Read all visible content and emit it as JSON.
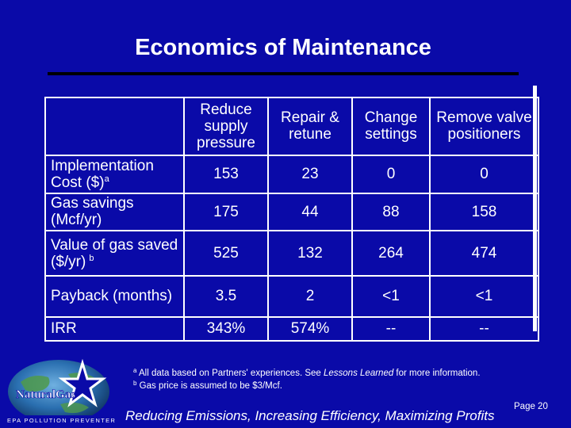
{
  "title": "Economics of Maintenance",
  "table": {
    "headers": [
      "",
      "Reduce supply pressure",
      "Repair & retune",
      "Change settings",
      "Remove valve positioners"
    ],
    "rows": [
      {
        "label": "Implementation Cost ($)",
        "sup": "a",
        "values": [
          "153",
          "23",
          "0",
          "0"
        ]
      },
      {
        "label": "Gas savings (Mcf/yr)",
        "sup": "",
        "values": [
          "175",
          "44",
          "88",
          "158"
        ]
      },
      {
        "label": "Value of gas saved ($/yr)",
        "sup": "b",
        "values": [
          "525",
          "132",
          "264",
          "474"
        ]
      },
      {
        "label": "Payback (months)",
        "sup": "",
        "values": [
          "3.5",
          "2",
          "<1",
          "<1"
        ]
      },
      {
        "label": "IRR",
        "sup": "",
        "values": [
          "343%",
          "574%",
          "--",
          "--"
        ]
      }
    ]
  },
  "footnotes": {
    "a": {
      "marker": "a",
      "text_before": "All data based on Partners' experiences.  See ",
      "italic": "Lessons Learned",
      "text_after": " for more information."
    },
    "b": {
      "marker": "b",
      "text": "Gas price is assumed to be $3/Mcf."
    }
  },
  "footer": {
    "tagline": "Reducing Emissions, Increasing Efficiency, Maximizing Profits",
    "page": "Page 20"
  },
  "logo": {
    "name": "NaturalGas",
    "subtitle": "EPA POLLUTION PREVENTER"
  },
  "colors": {
    "background": "#0a0aa8",
    "text": "#ffffff",
    "rule": "#000000"
  }
}
